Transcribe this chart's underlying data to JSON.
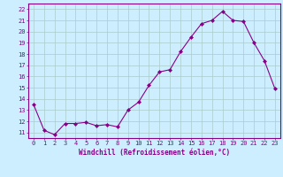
{
  "x": [
    0,
    1,
    2,
    3,
    4,
    5,
    6,
    7,
    8,
    9,
    10,
    11,
    12,
    13,
    14,
    15,
    16,
    17,
    18,
    19,
    20,
    21,
    22,
    23
  ],
  "y": [
    13.5,
    11.2,
    10.8,
    11.8,
    11.8,
    11.9,
    11.6,
    11.7,
    11.5,
    13.0,
    13.7,
    15.2,
    16.4,
    16.6,
    18.2,
    19.5,
    20.7,
    21.0,
    21.8,
    21.0,
    20.9,
    19.0,
    17.4,
    14.9
  ],
  "line_color": "#880088",
  "marker": "D",
  "marker_size": 2,
  "bg_color": "#cceeff",
  "grid_color": "#aacccc",
  "xlabel": "Windchill (Refroidissement éolien,°C)",
  "ylim": [
    10.5,
    22.5
  ],
  "yticks": [
    11,
    12,
    13,
    14,
    15,
    16,
    17,
    18,
    19,
    20,
    21,
    22
  ],
  "xticks": [
    0,
    1,
    2,
    3,
    4,
    5,
    6,
    7,
    8,
    9,
    10,
    11,
    12,
    13,
    14,
    15,
    16,
    17,
    18,
    19,
    20,
    21,
    22,
    23
  ],
  "tick_label_color": "#880088",
  "tick_fontsize": 5.0,
  "xlabel_fontsize": 5.5
}
